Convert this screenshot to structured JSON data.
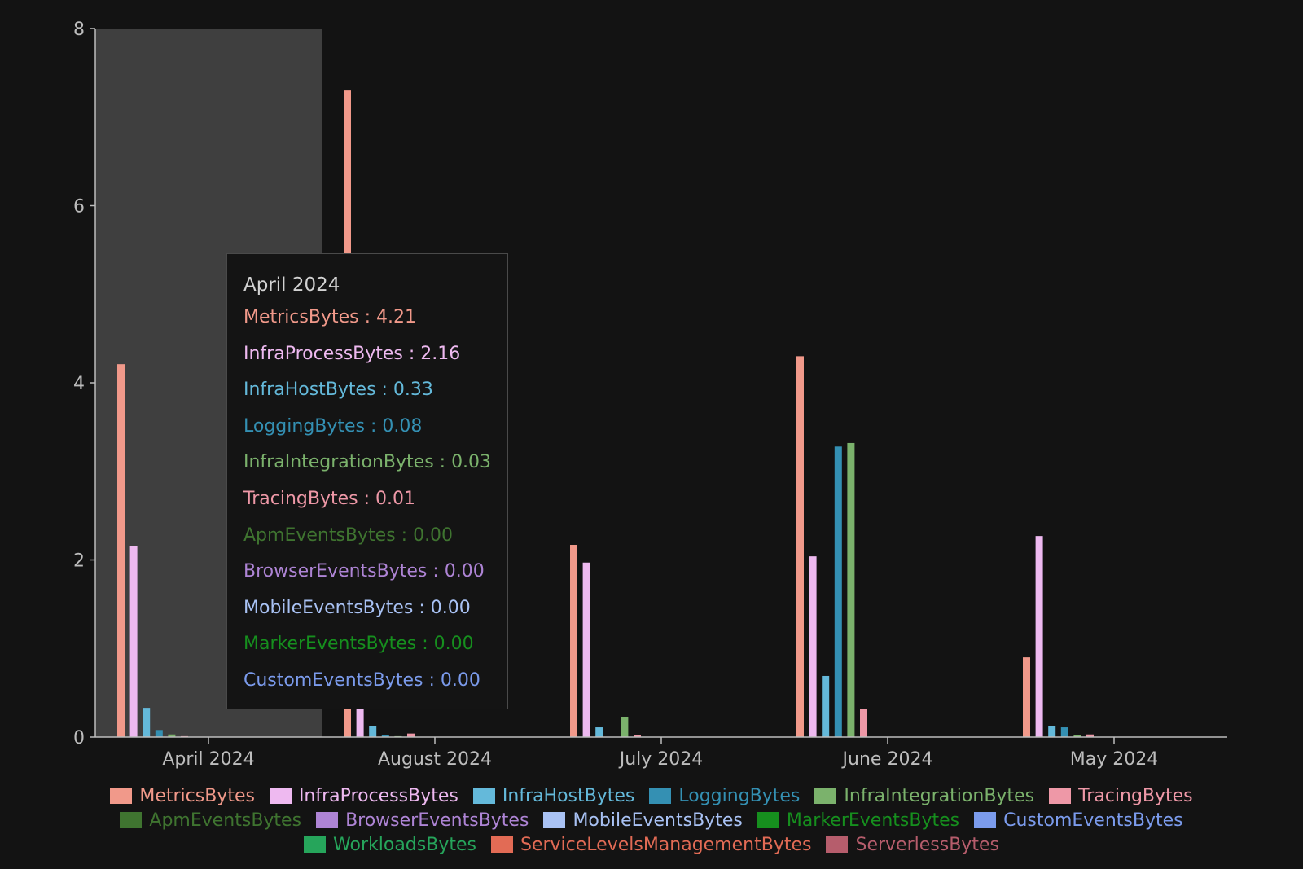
{
  "chart_data": {
    "type": "bar",
    "categories": [
      "April 2024",
      "August 2024",
      "July 2024",
      "June 2024",
      "May 2024"
    ],
    "ylim": [
      0,
      8
    ],
    "yticks": [
      0,
      2,
      4,
      6,
      8
    ],
    "grid": false,
    "legend_position": "bottom",
    "highlighted_category": "April 2024",
    "series": [
      {
        "name": "MetricsBytes",
        "color": "#f1998a",
        "values": [
          4.21,
          7.3,
          2.17,
          4.3,
          0.9
        ]
      },
      {
        "name": "InfraProcessBytes",
        "color": "#eeb9f0",
        "values": [
          2.16,
          2.3,
          1.97,
          2.04,
          2.27
        ]
      },
      {
        "name": "InfraHostBytes",
        "color": "#64b9da",
        "values": [
          0.33,
          0.12,
          0.11,
          0.69,
          0.12
        ]
      },
      {
        "name": "LoggingBytes",
        "color": "#3490b3",
        "values": [
          0.08,
          0.02,
          0.0,
          3.28,
          0.11
        ]
      },
      {
        "name": "InfraIntegrationBytes",
        "color": "#7bb26c",
        "values": [
          0.03,
          0.01,
          0.23,
          3.32,
          0.02
        ]
      },
      {
        "name": "TracingBytes",
        "color": "#ee98a7",
        "values": [
          0.01,
          0.04,
          0.02,
          0.32,
          0.03
        ]
      },
      {
        "name": "ApmEventsBytes",
        "color": "#3f7430",
        "values": [
          0.0,
          0.0,
          0.0,
          0.0,
          0.0
        ]
      },
      {
        "name": "BrowserEventsBytes",
        "color": "#ae84d5",
        "values": [
          0.0,
          0.0,
          0.0,
          0.0,
          0.0
        ]
      },
      {
        "name": "MobileEventsBytes",
        "color": "#a9c2f4",
        "values": [
          0.0,
          0.0,
          0.0,
          0.0,
          0.0
        ]
      },
      {
        "name": "MarkerEventsBytes",
        "color": "#168f1e",
        "values": [
          0.0,
          0.0,
          0.0,
          0.0,
          0.0
        ]
      },
      {
        "name": "CustomEventsBytes",
        "color": "#7b9bec",
        "values": [
          0.0,
          0.0,
          0.0,
          0.0,
          0.0
        ]
      },
      {
        "name": "WorkloadsBytes",
        "color": "#26a55b",
        "values": [
          0.0,
          0.0,
          0.0,
          0.0,
          0.0
        ]
      },
      {
        "name": "ServiceLevelsManagementBytes",
        "color": "#e26b55",
        "values": [
          0.0,
          0.0,
          0.0,
          0.0,
          0.0
        ]
      },
      {
        "name": "ServerlessBytes",
        "color": "#b65d6c",
        "values": [
          0.0,
          0.0,
          0.0,
          0.0,
          0.0
        ]
      }
    ]
  },
  "tooltip": {
    "title": "April 2024",
    "rows": [
      {
        "label": "MetricsBytes : 4.21",
        "color": "#f1998a"
      },
      {
        "label": "InfraProcessBytes : 2.16",
        "color": "#eeb9f0"
      },
      {
        "label": "InfraHostBytes : 0.33",
        "color": "#64b9da"
      },
      {
        "label": "LoggingBytes : 0.08",
        "color": "#3490b3"
      },
      {
        "label": "InfraIntegrationBytes : 0.03",
        "color": "#7bb26c"
      },
      {
        "label": "TracingBytes : 0.01",
        "color": "#ee98a7"
      },
      {
        "label": "ApmEventsBytes : 0.00",
        "color": "#3f7430"
      },
      {
        "label": "BrowserEventsBytes : 0.00",
        "color": "#ae84d5"
      },
      {
        "label": "MobileEventsBytes : 0.00",
        "color": "#a9c2f4"
      },
      {
        "label": "MarkerEventsBytes : 0.00",
        "color": "#168f1e"
      },
      {
        "label": "CustomEventsBytes : 0.00",
        "color": "#7b9bec"
      }
    ]
  }
}
